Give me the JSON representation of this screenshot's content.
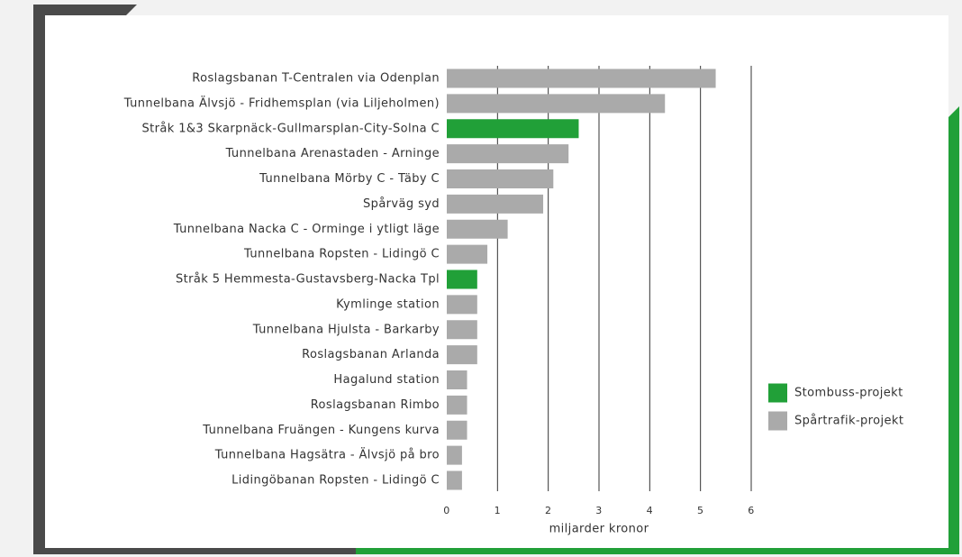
{
  "chart_data": {
    "type": "barh",
    "categories": [
      "Roslagsbanan T-Centralen via Odenplan",
      "Tunnelbana Älvsjö - Fridhemsplan (via Liljeholmen)",
      "Stråk 1&3 Skarpnäck-Gullmarsplan-City-Solna C",
      "Tunnelbana Arenastaden - Arninge",
      "Tunnelbana Mörby C - Täby C",
      "Spårväg syd",
      "Tunnelbana Nacka C - Orminge i ytligt läge",
      "Tunnelbana Ropsten - Lidingö C",
      "Stråk 5 Hemmesta-Gustavsberg-Nacka Tpl",
      "Kymlinge station",
      "Tunnelbana Hjulsta - Barkarby",
      "Roslagsbanan Arlanda",
      "Hagalund station",
      "Roslagsbanan Rimbo",
      "Tunnelbana Fruängen - Kungens kurva",
      "Tunnelbana Hagsätra - Älvsjö på bro",
      "Lidingöbanan Ropsten - Lidingö C"
    ],
    "series": [
      {
        "name": "Stombuss-projekt",
        "color": "#21a038",
        "values": [
          null,
          null,
          2.6,
          null,
          null,
          null,
          null,
          null,
          0.6,
          null,
          null,
          null,
          null,
          null,
          null,
          null,
          null
        ]
      },
      {
        "name": "Spårtrafik-projekt",
        "color": "#aaaaaa",
        "values": [
          5.3,
          4.3,
          null,
          2.4,
          2.1,
          1.9,
          1.2,
          0.8,
          null,
          0.6,
          0.6,
          0.6,
          0.4,
          0.4,
          0.4,
          0.3,
          0.3
        ]
      }
    ],
    "xlim": [
      0,
      6
    ],
    "xticks": [
      0,
      1,
      2,
      3,
      4,
      5,
      6
    ],
    "xlabel": "miljarder kronor",
    "grid": true,
    "legend": "right"
  }
}
